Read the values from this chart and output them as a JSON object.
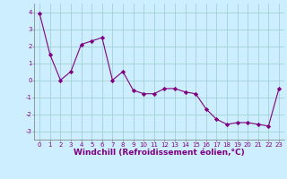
{
  "x": [
    0,
    1,
    2,
    3,
    4,
    5,
    6,
    7,
    8,
    9,
    10,
    11,
    12,
    13,
    14,
    15,
    16,
    17,
    18,
    19,
    20,
    21,
    22,
    23
  ],
  "y": [
    3.9,
    1.5,
    0.0,
    0.5,
    2.1,
    2.3,
    2.5,
    0.0,
    0.5,
    -0.6,
    -0.8,
    -0.8,
    -0.5,
    -0.5,
    -0.7,
    -0.8,
    -1.7,
    -2.3,
    -2.6,
    -2.5,
    -2.5,
    -2.6,
    -2.7,
    -0.5
  ],
  "xlim": [
    -0.5,
    23.5
  ],
  "ylim": [
    -3.5,
    4.5
  ],
  "yticks": [
    -3,
    -2,
    -1,
    0,
    1,
    2,
    3,
    4
  ],
  "xticks": [
    0,
    1,
    2,
    3,
    4,
    5,
    6,
    7,
    8,
    9,
    10,
    11,
    12,
    13,
    14,
    15,
    16,
    17,
    18,
    19,
    20,
    21,
    22,
    23
  ],
  "xlabel": "Windchill (Refroidissement éolien,°C)",
  "line_color": "#800080",
  "marker": "D",
  "marker_size": 2.2,
  "bg_color": "#cceeff",
  "grid_color": "#99cccc",
  "tick_fontsize": 5.0,
  "xlabel_fontsize": 6.5
}
